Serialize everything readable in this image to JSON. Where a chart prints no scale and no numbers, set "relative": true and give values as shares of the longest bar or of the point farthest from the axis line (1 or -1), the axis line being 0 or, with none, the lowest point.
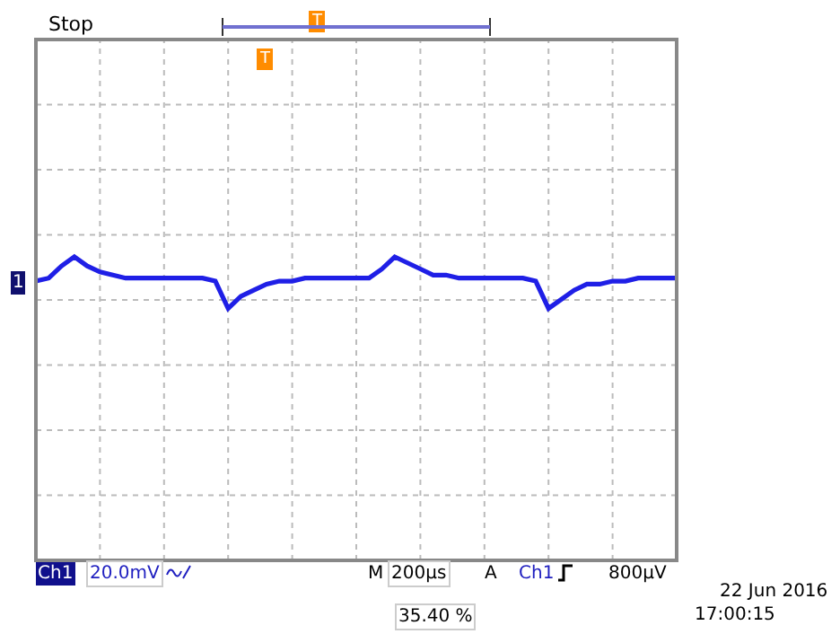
{
  "chart_data": {
    "type": "line",
    "relative": true,
    "grid": true,
    "tick_labels": false,
    "categories": [
      null,
      null,
      null,
      null,
      null,
      null,
      null,
      null,
      null,
      null,
      null,
      null,
      null,
      null,
      null,
      null,
      null,
      null,
      null,
      null,
      null,
      null,
      null,
      null,
      null,
      null,
      null,
      null,
      null,
      null,
      null,
      null,
      null,
      null,
      null,
      null,
      null,
      null,
      null,
      null,
      null,
      null,
      null,
      null,
      null,
      null,
      null,
      null,
      null,
      null,
      null
    ],
    "series": [
      {
        "color": "#1f1fe6",
        "values": [
          0.92,
          0.93,
          0.97,
          1,
          0.97,
          0.95,
          0.94,
          0.93,
          0.93,
          0.93,
          0.93,
          0.93,
          0.93,
          0.93,
          0.92,
          0.83,
          0.87,
          0.89,
          0.91,
          0.92,
          0.92,
          0.93,
          0.93,
          0.93,
          0.93,
          0.93,
          0.93,
          0.96,
          1,
          0.98,
          0.96,
          0.94,
          0.94,
          0.93,
          0.93,
          0.93,
          0.93,
          0.93,
          0.93,
          0.92,
          0.83,
          0.86,
          0.89,
          0.91,
          0.91,
          0.92,
          0.92,
          0.93,
          0.93,
          0.93,
          0.93
        ]
      }
    ],
    "annotations": [
      "Stop",
      "T",
      "T",
      "1",
      "Ch1",
      "20.0mV",
      "M",
      "200µs",
      "A",
      "Ch1",
      "800µV",
      "35.40 %",
      "22 Jun 2016",
      "17:00:15"
    ]
  }
}
